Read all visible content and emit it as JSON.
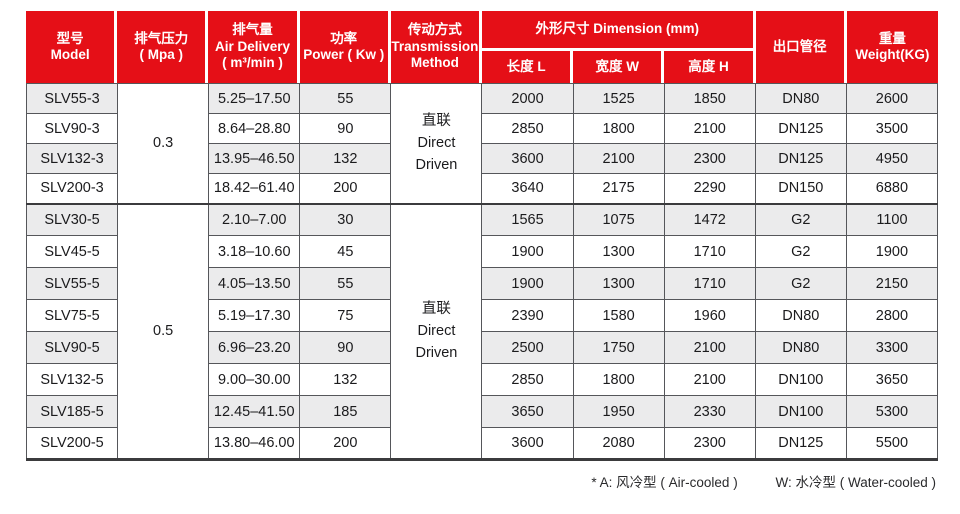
{
  "colors": {
    "header_red": "#e50f17",
    "stripe": "#ebebec",
    "line": "#55565a",
    "line_dark": "#3b3b3d",
    "text": "#1b1b1d"
  },
  "header": {
    "model": "型号\nModel",
    "pressure": "排气压力\n( Mpa )",
    "air_delivery": "排气量\nAir Delivery\n( m³/min )",
    "power": "功率\nPower ( Kw )",
    "transmission": "传动方式\nTransmission\nMethod",
    "dimension": "外形尺寸 Dimension (mm)",
    "length": "长度 L",
    "width": "宽度 W",
    "height": "高度 H",
    "outlet": "出口管径",
    "weight": "重量\nWeight(KG)"
  },
  "groups": [
    {
      "pressure": "0.3",
      "transmission": "直联\nDirect\nDriven",
      "rows": [
        {
          "model": "SLV55-3",
          "air": "5.25–17.50",
          "power": "55",
          "l": "2000",
          "w": "1525",
          "h": "1850",
          "outlet": "DN80",
          "weight": "2600"
        },
        {
          "model": "SLV90-3",
          "air": "8.64–28.80",
          "power": "90",
          "l": "2850",
          "w": "1800",
          "h": "2100",
          "outlet": "DN125",
          "weight": "3500"
        },
        {
          "model": "SLV132-3",
          "air": "13.95–46.50",
          "power": "132",
          "l": "3600",
          "w": "2100",
          "h": "2300",
          "outlet": "DN125",
          "weight": "4950"
        },
        {
          "model": "SLV200-3",
          "air": "18.42–61.40",
          "power": "200",
          "l": "3640",
          "w": "2175",
          "h": "2290",
          "outlet": "DN150",
          "weight": "6880"
        }
      ]
    },
    {
      "pressure": "0.5",
      "transmission": "直联\nDirect\nDriven",
      "rows": [
        {
          "model": "SLV30-5",
          "air": "2.10–7.00",
          "power": "30",
          "l": "1565",
          "w": "1075",
          "h": "1472",
          "outlet": "G2",
          "weight": "1100"
        },
        {
          "model": "SLV45-5",
          "air": "3.18–10.60",
          "power": "45",
          "l": "1900",
          "w": "1300",
          "h": "1710",
          "outlet": "G2",
          "weight": "1900"
        },
        {
          "model": "SLV55-5",
          "air": "4.05–13.50",
          "power": "55",
          "l": "1900",
          "w": "1300",
          "h": "1710",
          "outlet": "G2",
          "weight": "2150"
        },
        {
          "model": "SLV75-5",
          "air": "5.19–17.30",
          "power": "75",
          "l": "2390",
          "w": "1580",
          "h": "1960",
          "outlet": "DN80",
          "weight": "2800"
        },
        {
          "model": "SLV90-5",
          "air": "6.96–23.20",
          "power": "90",
          "l": "2500",
          "w": "1750",
          "h": "2100",
          "outlet": "DN80",
          "weight": "3300"
        },
        {
          "model": "SLV132-5",
          "air": "9.00–30.00",
          "power": "132",
          "l": "2850",
          "w": "1800",
          "h": "2100",
          "outlet": "DN100",
          "weight": "3650"
        },
        {
          "model": "SLV185-5",
          "air": "12.45–41.50",
          "power": "185",
          "l": "3650",
          "w": "1950",
          "h": "2330",
          "outlet": "DN100",
          "weight": "5300"
        },
        {
          "model": "SLV200-5",
          "air": "13.80–46.00",
          "power": "200",
          "l": "3600",
          "w": "2080",
          "h": "2300",
          "outlet": "DN125",
          "weight": "5500"
        }
      ]
    }
  ],
  "footnote": {
    "air": "* A: 风冷型 ( Air-cooled )",
    "water": "W: 水冷型 ( Water-cooled )"
  }
}
